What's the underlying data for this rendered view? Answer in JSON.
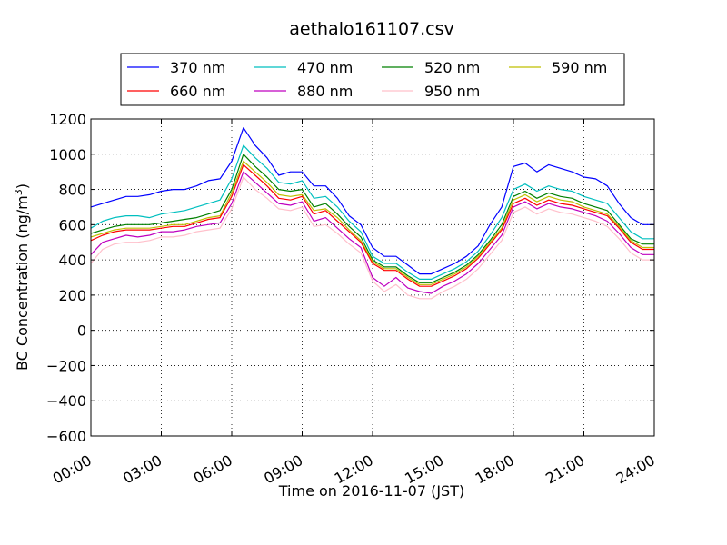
{
  "chart_data": {
    "type": "line",
    "title": "aethalo161107.csv",
    "xlabel": "Time on 2016-11-07 (JST)",
    "ylabel": "BC Concentration (ng/m",
    "ylabel_superscript": "3",
    "ylabel_suffix": ")",
    "xlim": [
      "00:00",
      "24:00"
    ],
    "ylim": [
      -600,
      1200
    ],
    "x_ticks": [
      "00:00",
      "03:00",
      "06:00",
      "09:00",
      "12:00",
      "15:00",
      "18:00",
      "21:00",
      "24:00"
    ],
    "y_ticks": [
      1200,
      1000,
      800,
      600,
      400,
      200,
      0,
      -200,
      -400,
      -600
    ],
    "grid": true,
    "legend_position": "top-center above plot, 4 columns",
    "x": [
      "00:00",
      "00:30",
      "01:00",
      "01:30",
      "02:00",
      "02:30",
      "03:00",
      "03:30",
      "04:00",
      "04:30",
      "05:00",
      "05:30",
      "06:00",
      "06:30",
      "07:00",
      "07:30",
      "08:00",
      "08:30",
      "09:00",
      "09:30",
      "10:00",
      "10:30",
      "11:00",
      "11:30",
      "12:00",
      "12:30",
      "13:00",
      "13:30",
      "14:00",
      "14:30",
      "15:00",
      "15:30",
      "16:00",
      "16:30",
      "17:00",
      "17:30",
      "18:00",
      "18:30",
      "19:00",
      "19:30",
      "20:00",
      "20:30",
      "21:00",
      "21:30",
      "22:00",
      "22:30",
      "23:00",
      "23:30",
      "24:00"
    ],
    "series": [
      {
        "name": "370 nm",
        "color": "#0000ff",
        "values": [
          700,
          720,
          740,
          760,
          760,
          770,
          790,
          800,
          800,
          820,
          850,
          860,
          960,
          1150,
          1050,
          980,
          880,
          900,
          900,
          820,
          820,
          750,
          650,
          600,
          470,
          420,
          420,
          370,
          320,
          320,
          350,
          380,
          420,
          480,
          600,
          700,
          930,
          950,
          900,
          940,
          920,
          900,
          870,
          860,
          820,
          720,
          640,
          600,
          600
        ]
      },
      {
        "name": "470 nm",
        "color": "#00bfbf",
        "values": [
          580,
          620,
          640,
          650,
          650,
          640,
          660,
          670,
          680,
          700,
          720,
          740,
          860,
          1050,
          980,
          920,
          840,
          830,
          850,
          750,
          760,
          700,
          620,
          560,
          420,
          380,
          380,
          330,
          290,
          290,
          320,
          350,
          390,
          450,
          540,
          640,
          800,
          830,
          790,
          820,
          800,
          790,
          760,
          740,
          720,
          640,
          560,
          520,
          520
        ]
      },
      {
        "name": "520 nm",
        "color": "#008000",
        "values": [
          550,
          570,
          590,
          600,
          600,
          600,
          610,
          620,
          630,
          640,
          660,
          680,
          800,
          1000,
          930,
          870,
          800,
          790,
          800,
          700,
          720,
          660,
          590,
          530,
          400,
          360,
          360,
          310,
          270,
          270,
          300,
          330,
          370,
          430,
          510,
          600,
          760,
          790,
          750,
          780,
          760,
          750,
          720,
          700,
          680,
          600,
          520,
          490,
          490
        ]
      },
      {
        "name": "590 nm",
        "color": "#bfbf00",
        "values": [
          530,
          550,
          570,
          580,
          580,
          580,
          590,
          600,
          600,
          620,
          640,
          650,
          780,
          960,
          900,
          840,
          770,
          760,
          770,
          680,
          690,
          640,
          570,
          510,
          390,
          350,
          350,
          300,
          260,
          260,
          290,
          320,
          360,
          420,
          500,
          580,
          740,
          770,
          730,
          760,
          740,
          730,
          700,
          680,
          660,
          590,
          510,
          470,
          470
        ]
      },
      {
        "name": "660 nm",
        "color": "#ff0000",
        "values": [
          510,
          540,
          560,
          570,
          570,
          570,
          580,
          590,
          590,
          610,
          630,
          640,
          760,
          940,
          880,
          820,
          750,
          740,
          760,
          660,
          680,
          620,
          560,
          500,
          380,
          340,
          340,
          290,
          250,
          250,
          280,
          310,
          350,
          410,
          490,
          570,
          720,
          750,
          710,
          740,
          720,
          710,
          690,
          670,
          650,
          580,
          500,
          460,
          460
        ]
      },
      {
        "name": "880 nm",
        "color": "#bf00bf",
        "values": [
          430,
          500,
          520,
          540,
          530,
          540,
          560,
          560,
          570,
          590,
          600,
          610,
          720,
          900,
          840,
          780,
          720,
          710,
          730,
          620,
          640,
          580,
          520,
          470,
          300,
          250,
          300,
          240,
          220,
          210,
          250,
          280,
          320,
          380,
          460,
          540,
          700,
          730,
          690,
          720,
          700,
          690,
          670,
          650,
          620,
          550,
          470,
          430,
          430
        ]
      },
      {
        "name": "950 nm",
        "color": "#ffc0cb",
        "values": [
          380,
          460,
          490,
          500,
          500,
          510,
          530,
          530,
          540,
          560,
          570,
          580,
          690,
          870,
          800,
          750,
          690,
          680,
          700,
          590,
          600,
          550,
          490,
          440,
          280,
          220,
          260,
          200,
          180,
          180,
          220,
          250,
          290,
          350,
          430,
          510,
          670,
          700,
          660,
          690,
          670,
          660,
          640,
          620,
          590,
          520,
          440,
          400,
          400
        ]
      }
    ]
  }
}
